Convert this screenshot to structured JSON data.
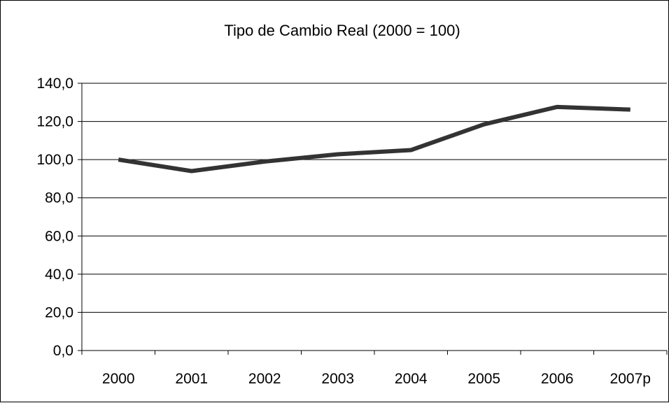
{
  "chart_data": {
    "type": "line",
    "title": "Tipo de Cambio Real (2000 = 100)",
    "categories": [
      "2000",
      "2001",
      "2002",
      "2003",
      "2004",
      "2005",
      "2006",
      "2007p"
    ],
    "series": [
      {
        "values": [
          100.0,
          94.0,
          99.0,
          102.8,
          105.0,
          118.5,
          127.6,
          126.2
        ]
      }
    ],
    "ylim": [
      0,
      140
    ],
    "yticks": [
      0,
      20,
      40,
      60,
      80,
      100,
      120,
      140
    ],
    "ytick_labels": [
      "0,0",
      "20,0",
      "40,0",
      "60,0",
      "80,0",
      "100,0",
      "120,0",
      "140,0"
    ],
    "xlabel": "",
    "ylabel": "",
    "grid": true,
    "legend": "none",
    "colors": {
      "line": "#333333",
      "grid": "#000000",
      "background": "#ffffff"
    }
  }
}
